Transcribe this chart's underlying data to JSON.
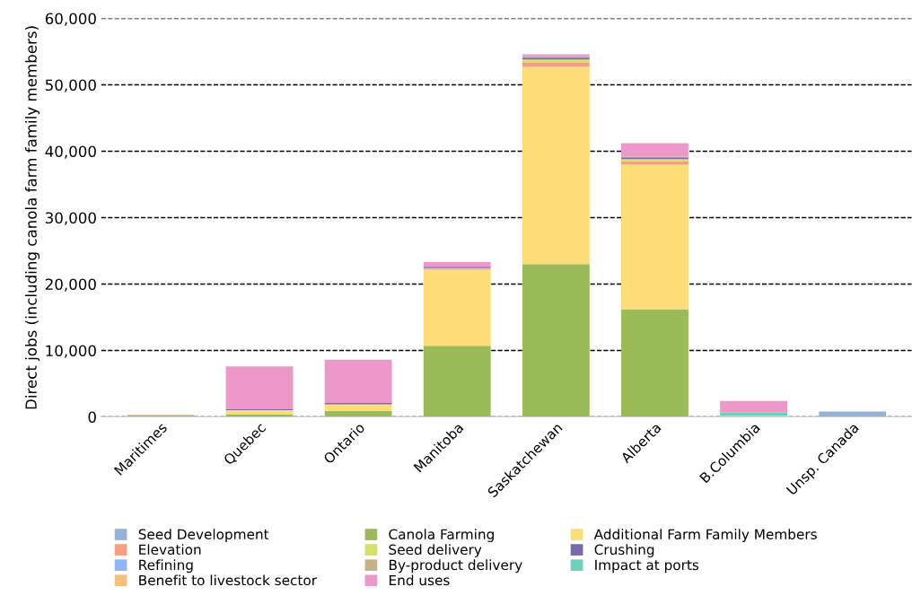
{
  "chart_data": {
    "type": "bar",
    "stacked": true,
    "ylabel": "Direct jobs (including canola farm family members)",
    "categories": [
      "Maritimes",
      "Quebec",
      "Ontario",
      "Manitoba",
      "Saskatchewan",
      "Alberta",
      "B.Columbia",
      "Unsp. Canada"
    ],
    "series": [
      {
        "name": "Seed Development",
        "color": "#95b3d7",
        "values": [
          0,
          0,
          0,
          0,
          0,
          0,
          0,
          800
        ]
      },
      {
        "name": "Canola Farming",
        "color": "#9bbb59",
        "values": [
          0,
          400,
          900,
          10700,
          23000,
          16200,
          null,
          0
        ]
      },
      {
        "name": "Additional Farm Family Members",
        "color": "#fddd78",
        "values": [
          0,
          600,
          1000,
          11400,
          29700,
          21800,
          0,
          0
        ]
      },
      {
        "name": "Elevation",
        "color": "#f4a080",
        "values": [
          0,
          0,
          0,
          100,
          600,
          500,
          0,
          0
        ]
      },
      {
        "name": "Seed delivery",
        "color": "#d4e06b",
        "values": [
          0,
          0,
          0,
          200,
          500,
          300,
          200,
          0
        ]
      },
      {
        "name": "Crushing",
        "color": "#7a69a8",
        "values": [
          0,
          200,
          200,
          200,
          300,
          300,
          0,
          0
        ]
      },
      {
        "name": "Refining",
        "color": "#8fb6f4",
        "values": [
          0,
          0,
          0,
          0,
          0,
          0,
          0,
          0
        ]
      },
      {
        "name": "By-product delivery",
        "color": "#c4b388",
        "values": [
          300,
          0,
          0,
          0,
          200,
          100,
          0,
          0
        ]
      },
      {
        "name": "Impact at ports",
        "color": "#6fd0bb",
        "values": [
          0,
          0,
          0,
          0,
          0,
          0,
          500,
          0
        ]
      },
      {
        "name": "Benefit to livestock sector",
        "color": "#f5c07a",
        "values": [
          0,
          0,
          0,
          0,
          0,
          0,
          0,
          0
        ]
      },
      {
        "name": "End uses",
        "color": "#ec98c8",
        "values": [
          0,
          6400,
          6500,
          700,
          300,
          2000,
          1700,
          0
        ]
      }
    ],
    "ylim": [
      0,
      60000
    ],
    "yticks": [
      {
        "value": 0,
        "label": "0"
      },
      {
        "value": 10000,
        "label": "10,000"
      },
      {
        "value": 20000,
        "label": "20,000"
      },
      {
        "value": 30000,
        "label": "30,000"
      },
      {
        "value": 40000,
        "label": "40,000"
      },
      {
        "value": 50000,
        "label": "50,000"
      },
      {
        "value": 60000,
        "label": "60,000"
      }
    ],
    "grid": "y",
    "legend": "bottom"
  }
}
